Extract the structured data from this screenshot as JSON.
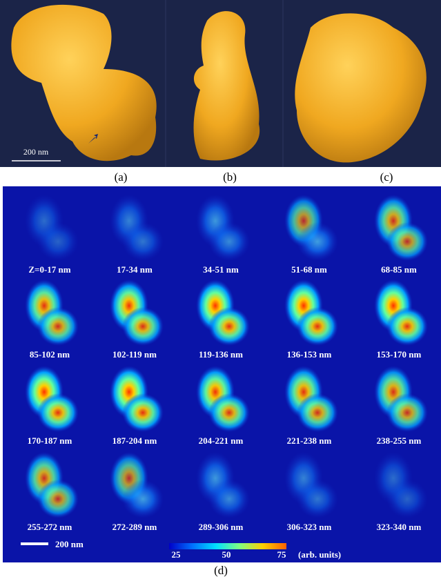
{
  "panels": {
    "a": "(a)",
    "b": "(b)",
    "c": "(c)",
    "d": "(d)"
  },
  "scale_bar_top": "200 nm",
  "scale_bar_bottom": "200 nm",
  "slices": [
    "Z=0-17 nm",
    "17-34 nm",
    "34-51 nm",
    "51-68 nm",
    "68-85 nm",
    "85-102 nm",
    "102-119 nm",
    "119-136 nm",
    "136-153 nm",
    "153-170 nm",
    "170-187 nm",
    "187-204 nm",
    "204-221 nm",
    "221-238 nm",
    "238-255 nm",
    "255-272 nm",
    "272-289 nm",
    "289-306 nm",
    "306-323 nm",
    "323-340 nm"
  ],
  "colorbar": {
    "ticks": [
      "25",
      "50",
      "75"
    ],
    "unit": "(arb. units)"
  }
}
